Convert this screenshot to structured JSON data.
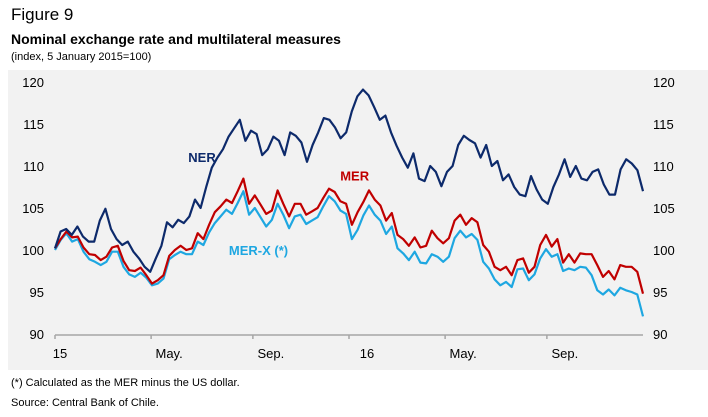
{
  "header": {
    "figure_number": "Figure 9",
    "title": "Nominal exchange rate and multilateral measures",
    "subtitle": "(index, 5 January 2015=100)"
  },
  "footer": {
    "note": "(*) Calculated as the MER minus the US dollar.",
    "source": "Source: Central Bank of Chile."
  },
  "chart_data": {
    "type": "line",
    "title": "Nominal exchange rate and multilateral measures",
    "subtitle": "(index, 5 January 2015=100)",
    "xlabel": "",
    "ylabel": "",
    "ylim": [
      90,
      120
    ],
    "yticks": [
      90,
      95,
      100,
      105,
      110,
      115,
      120
    ],
    "xlim_weeks": [
      0,
      104
    ],
    "xticks": [
      {
        "label": "15",
        "week": 0
      },
      {
        "label": "May.",
        "week": 17
      },
      {
        "label": "Sep.",
        "week": 35
      },
      {
        "label": "16",
        "week": 52
      },
      {
        "label": "May.",
        "week": 69
      },
      {
        "label": "Sep.",
        "week": 87
      }
    ],
    "grid": false,
    "legend": "inline-labels",
    "series": [
      {
        "name": "NER",
        "label": "NER",
        "color": "#0d2a6b",
        "label_pos": {
          "week": 26,
          "value": 110.5
        },
        "values": [
          100.2,
          102.2,
          102.5,
          101.8,
          102.8,
          101.6,
          101.0,
          101.0,
          103.5,
          104.9,
          102.5,
          101.3,
          100.6,
          101.0,
          99.8,
          99.0,
          98.0,
          97.4,
          99.0,
          100.5,
          103.3,
          102.7,
          103.6,
          103.2,
          104.0,
          106.0,
          105.0,
          107.5,
          109.8,
          111.0,
          112.0,
          113.5,
          114.5,
          115.5,
          113.0,
          114.2,
          113.8,
          111.3,
          112.0,
          113.5,
          113.0,
          111.3,
          114.0,
          113.6,
          112.8,
          110.5,
          112.5,
          114.0,
          115.7,
          115.5,
          114.6,
          113.3,
          114.0,
          116.5,
          118.3,
          119.1,
          118.4,
          117.0,
          115.5,
          116.0,
          114.0,
          112.4,
          111.0,
          109.8,
          111.5,
          108.5,
          108.2,
          110.0,
          109.3,
          107.6,
          109.3,
          110.0,
          112.5,
          113.6,
          113.1,
          112.7,
          111.0,
          112.5,
          110.0,
          110.6,
          108.3,
          109.0,
          107.5,
          106.6,
          106.4,
          108.8,
          107.2,
          106.0,
          105.5,
          107.5,
          109.0,
          110.8,
          108.7,
          110.0,
          108.5,
          108.3,
          109.3,
          109.6,
          107.8,
          106.6,
          106.6,
          109.6,
          110.8,
          110.3,
          109.5,
          107.0
        ]
      },
      {
        "name": "MER",
        "label": "MER",
        "color": "#c00000",
        "label_pos": {
          "week": 53,
          "value": 108.3
        },
        "values": [
          100.2,
          101.3,
          102.2,
          101.5,
          101.6,
          100.3,
          99.5,
          99.4,
          98.8,
          99.2,
          100.3,
          100.5,
          98.7,
          97.6,
          97.5,
          97.9,
          97.0,
          96.0,
          96.4,
          97.0,
          99.3,
          100.0,
          100.5,
          100.0,
          100.2,
          102.0,
          101.3,
          103.0,
          104.5,
          105.2,
          106.0,
          105.6,
          107.0,
          108.5,
          105.5,
          106.5,
          105.4,
          104.3,
          104.7,
          107.1,
          105.5,
          104.0,
          105.5,
          105.5,
          104.2,
          104.6,
          105.0,
          106.2,
          107.3,
          106.9,
          105.8,
          105.5,
          103.0,
          104.5,
          105.7,
          107.1,
          106.0,
          105.3,
          103.5,
          104.4,
          101.8,
          101.3,
          100.5,
          101.5,
          100.3,
          100.5,
          102.3,
          101.4,
          100.8,
          101.4,
          103.5,
          104.2,
          103.0,
          103.8,
          103.3,
          100.6,
          99.8,
          98.0,
          97.6,
          98.0,
          97.0,
          98.8,
          99.0,
          97.3,
          98.0,
          100.6,
          101.8,
          100.4,
          101.3,
          98.5,
          99.5,
          98.5,
          99.6,
          99.5,
          99.5,
          98.2,
          96.8,
          97.5,
          96.5,
          98.2,
          98.0,
          98.0,
          97.4,
          94.8
        ]
      },
      {
        "name": "MER-X (*)",
        "label": "MER-X (*)",
        "color": "#1ea7e1",
        "label_pos": {
          "week": 36,
          "value": 99.4
        },
        "values": [
          100.0,
          101.2,
          102.0,
          101.0,
          101.3,
          99.8,
          98.9,
          98.6,
          98.2,
          98.6,
          99.8,
          99.8,
          98.0,
          97.1,
          96.8,
          97.3,
          96.7,
          95.8,
          96.0,
          96.6,
          98.9,
          99.4,
          99.8,
          99.5,
          99.5,
          101.0,
          100.6,
          102.1,
          103.2,
          104.0,
          104.8,
          104.3,
          105.6,
          107.0,
          104.2,
          105.0,
          103.9,
          102.8,
          103.6,
          105.5,
          104.2,
          102.6,
          104.0,
          104.2,
          103.1,
          103.5,
          103.9,
          105.2,
          106.4,
          105.8,
          104.7,
          104.3,
          101.3,
          102.4,
          104.1,
          105.3,
          104.2,
          103.5,
          101.9,
          102.8,
          100.2,
          99.6,
          98.8,
          99.8,
          98.5,
          98.4,
          99.5,
          99.2,
          98.6,
          99.2,
          101.4,
          102.3,
          101.5,
          101.9,
          101.2,
          98.6,
          97.8,
          96.5,
          95.8,
          96.2,
          95.6,
          97.7,
          97.8,
          96.4,
          97.1,
          99.0,
          100.1,
          99.2,
          99.5,
          97.5,
          97.8,
          97.6,
          98.0,
          97.9,
          97.0,
          95.2,
          94.7,
          95.3,
          94.6,
          95.5,
          95.2,
          95.0,
          94.7,
          92.1
        ]
      }
    ],
    "annotations": []
  }
}
